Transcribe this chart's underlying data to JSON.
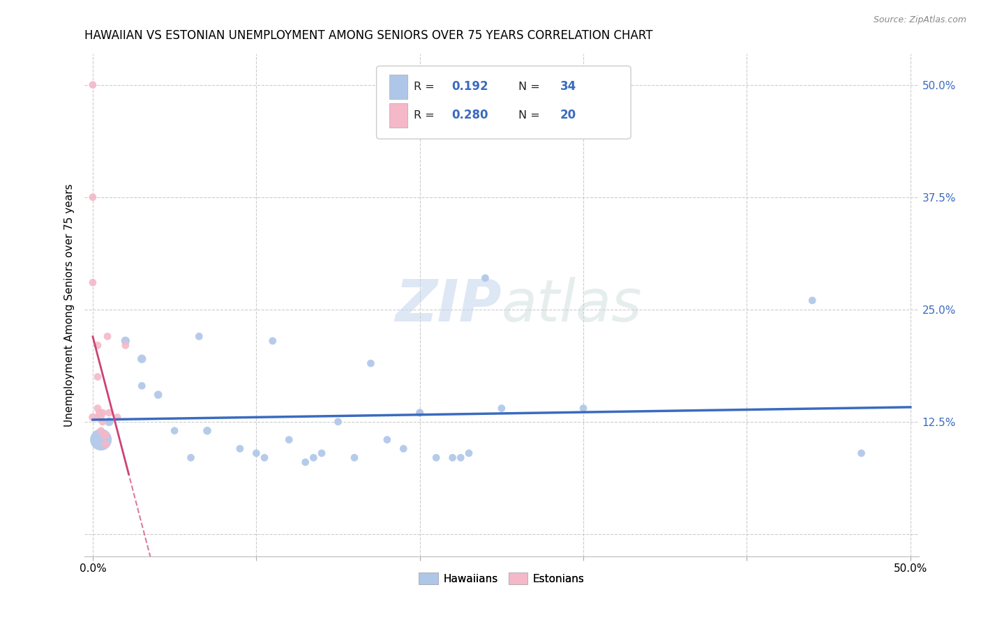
{
  "title": "HAWAIIAN VS ESTONIAN UNEMPLOYMENT AMONG SENIORS OVER 75 YEARS CORRELATION CHART",
  "source": "Source: ZipAtlas.com",
  "ylabel": "Unemployment Among Seniors over 75 years",
  "yticks": [
    0.0,
    0.125,
    0.25,
    0.375,
    0.5
  ],
  "ytick_labels": [
    "",
    "12.5%",
    "25.0%",
    "37.5%",
    "50.0%"
  ],
  "xticks": [
    0.0,
    0.1,
    0.2,
    0.3,
    0.4,
    0.5
  ],
  "xlim": [
    -0.005,
    0.505
  ],
  "ylim": [
    -0.025,
    0.535
  ],
  "watermark": "ZIPatlas",
  "legend_r_hawaiian": "0.192",
  "legend_n_hawaiian": "34",
  "legend_r_estonian": "0.280",
  "legend_n_estonian": "20",
  "hawaiian_color": "#aec6e8",
  "estonian_color": "#f4b8c8",
  "line_hawaiian_color": "#3a6bbf",
  "line_estonian_color": "#cc4477",
  "hawaiian_x": [
    0.005,
    0.01,
    0.02,
    0.03,
    0.03,
    0.04,
    0.05,
    0.06,
    0.065,
    0.07,
    0.09,
    0.1,
    0.105,
    0.11,
    0.12,
    0.13,
    0.135,
    0.14,
    0.15,
    0.16,
    0.17,
    0.18,
    0.19,
    0.2,
    0.2,
    0.21,
    0.22,
    0.225,
    0.23,
    0.24,
    0.25,
    0.3,
    0.44,
    0.47
  ],
  "hawaiian_y": [
    0.105,
    0.125,
    0.215,
    0.195,
    0.165,
    0.155,
    0.115,
    0.085,
    0.22,
    0.115,
    0.095,
    0.09,
    0.085,
    0.215,
    0.105,
    0.08,
    0.085,
    0.09,
    0.125,
    0.085,
    0.19,
    0.105,
    0.095,
    0.135,
    0.135,
    0.085,
    0.085,
    0.085,
    0.09,
    0.285,
    0.14,
    0.14,
    0.26,
    0.09
  ],
  "hawaiian_sizes": [
    500,
    80,
    80,
    80,
    60,
    70,
    60,
    60,
    60,
    70,
    60,
    60,
    60,
    60,
    60,
    60,
    60,
    60,
    60,
    60,
    60,
    60,
    60,
    60,
    60,
    60,
    60,
    60,
    60,
    60,
    60,
    60,
    60,
    60
  ],
  "estonian_x": [
    0.0,
    0.0,
    0.0,
    0.0,
    0.003,
    0.003,
    0.003,
    0.003,
    0.004,
    0.005,
    0.005,
    0.006,
    0.006,
    0.007,
    0.008,
    0.008,
    0.009,
    0.01,
    0.015,
    0.02
  ],
  "estonian_y": [
    0.5,
    0.375,
    0.28,
    0.13,
    0.21,
    0.175,
    0.14,
    0.13,
    0.135,
    0.13,
    0.115,
    0.135,
    0.125,
    0.11,
    0.11,
    0.1,
    0.22,
    0.135,
    0.13,
    0.21
  ],
  "estonian_sizes": [
    60,
    60,
    60,
    70,
    60,
    60,
    60,
    60,
    60,
    60,
    60,
    60,
    60,
    60,
    60,
    70,
    60,
    60,
    60,
    60
  ]
}
